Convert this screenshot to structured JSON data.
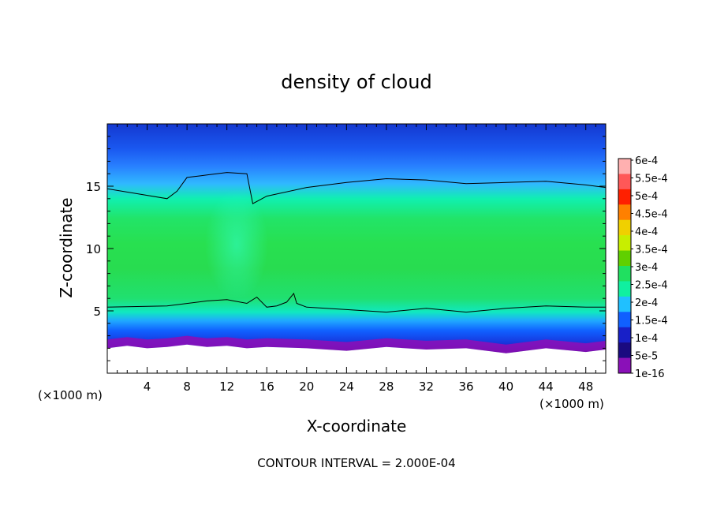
{
  "chart_data": {
    "type": "heatmap",
    "title": "density of cloud",
    "xlabel": "X-coordinate",
    "ylabel": "Z-coordinate",
    "x_unit": "(×1000 m)",
    "xlim": [
      0,
      50
    ],
    "ylim": [
      0,
      20
    ],
    "x_ticks": [
      4,
      8,
      12,
      16,
      20,
      24,
      28,
      32,
      36,
      40,
      44,
      48
    ],
    "y_ticks": [
      5,
      10,
      15
    ],
    "footer": "CONTOUR INTERVAL = 2.000E-04",
    "colorbar": {
      "labels": [
        "6e-4",
        "5.5e-4",
        "5e-4",
        "4.5e-4",
        "4e-4",
        "3.5e-4",
        "3e-4",
        "2.5e-4",
        "2e-4",
        "1.5e-4",
        "1e-4",
        "5e-5",
        "1e-16"
      ],
      "colors": [
        "#ffb0b0",
        "#ff5858",
        "#ff2000",
        "#ff8000",
        "#f0d000",
        "#c8ee00",
        "#60d000",
        "#20e060",
        "#10f0a0",
        "#20c0ff",
        "#1060ff",
        "#1820c8",
        "#1a0a80",
        "#8a10b8"
      ]
    },
    "contour_levels": [
      0.0002
    ],
    "contour_upper_z": [
      [
        0,
        14.8
      ],
      [
        3,
        14.4
      ],
      [
        6,
        14.0
      ],
      [
        7,
        14.6
      ],
      [
        8,
        15.7
      ],
      [
        10,
        15.9
      ],
      [
        12,
        16.1
      ],
      [
        14,
        16.0
      ],
      [
        14.6,
        13.6
      ],
      [
        16,
        14.2
      ],
      [
        20,
        14.9
      ],
      [
        24,
        15.3
      ],
      [
        28,
        15.6
      ],
      [
        32,
        15.5
      ],
      [
        36,
        15.2
      ],
      [
        40,
        15.3
      ],
      [
        44,
        15.4
      ],
      [
        48,
        15.1
      ],
      [
        50,
        14.9
      ]
    ],
    "contour_lower_z": [
      [
        0,
        5.3
      ],
      [
        6,
        5.4
      ],
      [
        10,
        5.8
      ],
      [
        12,
        5.9
      ],
      [
        14,
        5.6
      ],
      [
        15,
        6.1
      ],
      [
        16,
        5.3
      ],
      [
        17,
        5.4
      ],
      [
        18,
        5.7
      ],
      [
        18.7,
        6.4
      ],
      [
        19,
        5.6
      ],
      [
        20,
        5.3
      ],
      [
        24,
        5.1
      ],
      [
        28,
        4.9
      ],
      [
        32,
        5.2
      ],
      [
        36,
        4.9
      ],
      [
        40,
        5.2
      ],
      [
        44,
        5.4
      ],
      [
        48,
        5.3
      ],
      [
        50,
        5.3
      ]
    ],
    "cloud_base_z": [
      [
        0,
        2.0
      ],
      [
        2,
        2.2
      ],
      [
        4,
        2.0
      ],
      [
        6,
        2.1
      ],
      [
        8,
        2.3
      ],
      [
        10,
        2.1
      ],
      [
        12,
        2.2
      ],
      [
        14,
        2.0
      ],
      [
        16,
        2.1
      ],
      [
        20,
        2.0
      ],
      [
        24,
        1.8
      ],
      [
        28,
        2.1
      ],
      [
        32,
        1.9
      ],
      [
        36,
        2.0
      ],
      [
        40,
        1.6
      ],
      [
        44,
        2.0
      ],
      [
        48,
        1.7
      ],
      [
        50,
        1.9
      ]
    ]
  }
}
